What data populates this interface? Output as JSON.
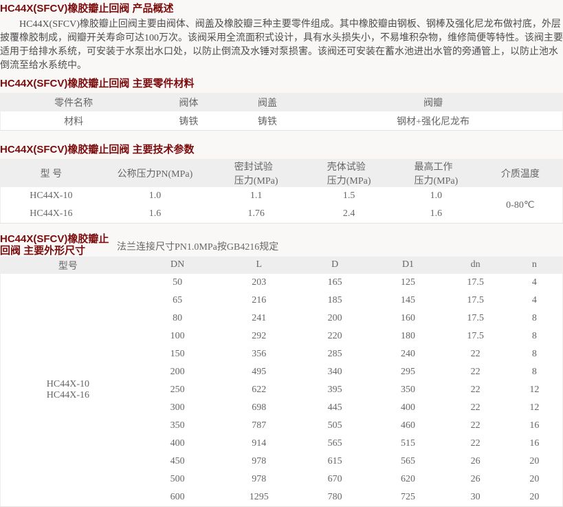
{
  "theme": {
    "title_color": "#7b0c0c",
    "table_header_bg": "#eeeeee",
    "body_text_color": "#4e4e4e",
    "table_text_color": "#666666",
    "page_bg": "#faf7f7"
  },
  "overview": {
    "title": "HC44X(SFCV)橡胶瓣止回阀 产品概述",
    "paragraph": "HC44X(SFCV)橡胶瓣止回阀主要由阀体、阀盖及橡胶瓣三种主要零件组成。其中橡胶瓣由钢板、钢棒及强化尼龙布做衬底，外层披覆橡胶制成，阀瓣开关寿命可达100万次。该阀采用全流面积式设计，具有水头损失小，不易堆积杂物，维修简便等特性。该阀主要适用于给排水系统，可安装于水泵出水口处，以防止倒流及水锤对泵损害。该阀还可安装在蓄水池进出水管的旁通管上，以防止池水倒流至给水系统中。"
  },
  "materials": {
    "title": "HC44X(SFCV)橡胶瓣止回阀 主要零件材料",
    "table": {
      "headers": [
        "零件名称",
        "阀体",
        "阀盖",
        "阀瓣"
      ],
      "rows": [
        [
          "材料",
          "铸铁",
          "铸铁",
          "钢材+强化尼龙布"
        ]
      ]
    }
  },
  "params": {
    "title": "HC44X(SFCV)橡胶瓣止回阀 主要技术参数",
    "table": {
      "headers": [
        "型 号",
        "公称压力PN(MPa)",
        "密封试验\n压力(MPa)",
        "壳体试验\n压力(MPa)",
        "最高工作\n压力(MPa)",
        "介质温度"
      ],
      "rows": [
        [
          "HC44X-10",
          "1.0",
          "1.1",
          "1.5",
          "1.0"
        ],
        [
          "HC44X-16",
          "1.6",
          "1.76",
          "2.4",
          "1.6"
        ]
      ],
      "tail_span": "0-80℃"
    }
  },
  "dimensions": {
    "title": "HC44X(SFCV)橡胶瓣止回阀 主要外形尺寸",
    "note": "法兰连接尺寸PN1.0MPa按GB4216规定",
    "table": {
      "headers": [
        "型号",
        "DN",
        "L",
        "D",
        "D1",
        "dn",
        "n"
      ],
      "lead_span": "HC44X-10\nHC44X-16",
      "rows": [
        [
          "50",
          "203",
          "165",
          "125",
          "17.5",
          "4"
        ],
        [
          "65",
          "216",
          "185",
          "145",
          "17.5",
          "4"
        ],
        [
          "80",
          "241",
          "200",
          "160",
          "17.5",
          "8"
        ],
        [
          "100",
          "292",
          "220",
          "180",
          "17.5",
          "8"
        ],
        [
          "150",
          "356",
          "285",
          "240",
          "22",
          "8"
        ],
        [
          "200",
          "495",
          "340",
          "295",
          "22",
          "8"
        ],
        [
          "250",
          "622",
          "395",
          "350",
          "22",
          "12"
        ],
        [
          "300",
          "698",
          "445",
          "400",
          "22",
          "12"
        ],
        [
          "350",
          "787",
          "505",
          "460",
          "22",
          "16"
        ],
        [
          "400",
          "914",
          "565",
          "515",
          "22",
          "16"
        ],
        [
          "450",
          "978",
          "615",
          "565",
          "26",
          "20"
        ],
        [
          "500",
          "978",
          "670",
          "620",
          "26",
          "20"
        ],
        [
          "600",
          "1295",
          "780",
          "725",
          "30",
          "20"
        ]
      ]
    }
  }
}
